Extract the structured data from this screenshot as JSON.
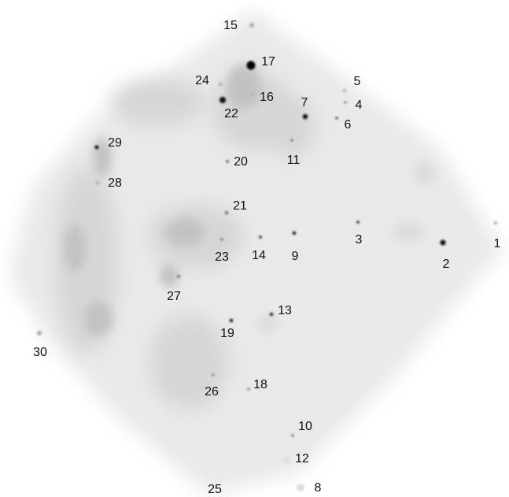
{
  "labels": [
    "1",
    "2",
    "3",
    "4",
    "5",
    "6",
    "7",
    "8",
    "9",
    "10",
    "11",
    "12",
    "13",
    "14",
    "15",
    "16",
    "17",
    "18",
    "19",
    "20",
    "21",
    "22",
    "23",
    "24",
    "25",
    "26",
    "27",
    "28",
    "29",
    "30"
  ]
}
